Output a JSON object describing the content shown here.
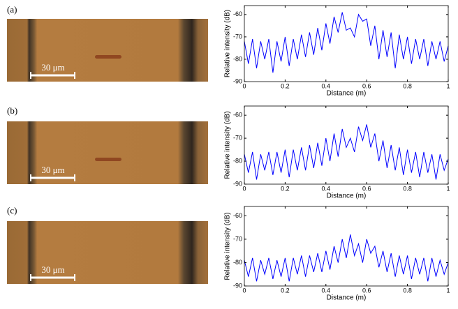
{
  "panels": [
    {
      "label": "(a)",
      "scale_bar": "30 μm"
    },
    {
      "label": "(b)",
      "scale_bar": "30 μm"
    },
    {
      "label": "(c)",
      "scale_bar": "30 μm"
    }
  ],
  "chart_data": [
    {
      "type": "line",
      "xlabel": "Distance (m)",
      "ylabel": "Relative intensity (dB)",
      "color": "#0000ff",
      "x": [
        0,
        0.02,
        0.04,
        0.06,
        0.08,
        0.1,
        0.12,
        0.14,
        0.16,
        0.18,
        0.2,
        0.22,
        0.24,
        0.26,
        0.28,
        0.3,
        0.32,
        0.34,
        0.36,
        0.38,
        0.4,
        0.42,
        0.44,
        0.46,
        0.48,
        0.5,
        0.52,
        0.54,
        0.56,
        0.58,
        0.6,
        0.62,
        0.64,
        0.66,
        0.68,
        0.7,
        0.72,
        0.74,
        0.76,
        0.78,
        0.8,
        0.82,
        0.84,
        0.86,
        0.88,
        0.9,
        0.92,
        0.94,
        0.96,
        0.98,
        1
      ],
      "values": [
        -72,
        -82,
        -71,
        -84,
        -72,
        -80,
        -71,
        -86,
        -72,
        -81,
        -70,
        -83,
        -71,
        -80,
        -69,
        -79,
        -68,
        -78,
        -66,
        -76,
        -64,
        -73,
        -61,
        -68,
        -59,
        -67,
        -66,
        -70,
        -60,
        -63,
        -62,
        -74,
        -65,
        -80,
        -67,
        -79,
        -68,
        -84,
        -69,
        -80,
        -70,
        -82,
        -71,
        -80,
        -71,
        -83,
        -72,
        -80,
        -72,
        -81,
        -74
      ],
      "xlim": [
        0,
        1
      ],
      "ylim": [
        -90,
        -56
      ],
      "xticks": [
        0,
        0.2,
        0.4,
        0.6,
        0.8,
        1
      ],
      "yticks": [
        -90,
        -80,
        -70,
        -60
      ]
    },
    {
      "type": "line",
      "xlabel": "Distance (m)",
      "ylabel": "Relative intensity (dB)",
      "color": "#0000ff",
      "x": [
        0,
        0.02,
        0.04,
        0.06,
        0.08,
        0.1,
        0.12,
        0.14,
        0.16,
        0.18,
        0.2,
        0.22,
        0.24,
        0.26,
        0.28,
        0.3,
        0.32,
        0.34,
        0.36,
        0.38,
        0.4,
        0.42,
        0.44,
        0.46,
        0.48,
        0.5,
        0.52,
        0.54,
        0.56,
        0.58,
        0.6,
        0.62,
        0.64,
        0.66,
        0.68,
        0.7,
        0.72,
        0.74,
        0.76,
        0.78,
        0.8,
        0.82,
        0.84,
        0.86,
        0.88,
        0.9,
        0.92,
        0.94,
        0.96,
        0.98,
        1
      ],
      "values": [
        -77,
        -85,
        -76,
        -88,
        -77,
        -84,
        -76,
        -86,
        -76,
        -85,
        -75,
        -87,
        -75,
        -84,
        -74,
        -84,
        -73,
        -83,
        -72,
        -82,
        -70,
        -80,
        -68,
        -78,
        -66,
        -74,
        -70,
        -76,
        -65,
        -71,
        -64,
        -74,
        -68,
        -80,
        -71,
        -83,
        -73,
        -84,
        -74,
        -86,
        -75,
        -85,
        -76,
        -87,
        -76,
        -85,
        -77,
        -88,
        -77,
        -84,
        -79
      ],
      "xlim": [
        0,
        1
      ],
      "ylim": [
        -90,
        -56
      ],
      "xticks": [
        0,
        0.2,
        0.4,
        0.6,
        0.8,
        1
      ],
      "yticks": [
        -90,
        -80,
        -70,
        -60
      ]
    },
    {
      "type": "line",
      "xlabel": "Distance (m)",
      "ylabel": "Relative intensity (dB)",
      "color": "#0000ff",
      "x": [
        0,
        0.02,
        0.04,
        0.06,
        0.08,
        0.1,
        0.12,
        0.14,
        0.16,
        0.18,
        0.2,
        0.22,
        0.24,
        0.26,
        0.28,
        0.3,
        0.32,
        0.34,
        0.36,
        0.38,
        0.4,
        0.42,
        0.44,
        0.46,
        0.48,
        0.5,
        0.52,
        0.54,
        0.56,
        0.58,
        0.6,
        0.62,
        0.64,
        0.66,
        0.68,
        0.7,
        0.72,
        0.74,
        0.76,
        0.78,
        0.8,
        0.82,
        0.84,
        0.86,
        0.88,
        0.9,
        0.92,
        0.94,
        0.96,
        0.98,
        1
      ],
      "values": [
        -79,
        -86,
        -78,
        -88,
        -79,
        -85,
        -78,
        -87,
        -79,
        -86,
        -78,
        -88,
        -78,
        -85,
        -77,
        -86,
        -77,
        -84,
        -76,
        -84,
        -75,
        -83,
        -73,
        -80,
        -70,
        -78,
        -68,
        -77,
        -72,
        -80,
        -70,
        -76,
        -73,
        -82,
        -75,
        -84,
        -76,
        -86,
        -77,
        -85,
        -77,
        -87,
        -78,
        -85,
        -78,
        -88,
        -78,
        -86,
        -79,
        -85,
        -80
      ],
      "xlim": [
        0,
        1
      ],
      "ylim": [
        -90,
        -56
      ],
      "xticks": [
        0,
        0.2,
        0.4,
        0.6,
        0.8,
        1
      ],
      "yticks": [
        -90,
        -80,
        -70,
        -60
      ]
    }
  ]
}
